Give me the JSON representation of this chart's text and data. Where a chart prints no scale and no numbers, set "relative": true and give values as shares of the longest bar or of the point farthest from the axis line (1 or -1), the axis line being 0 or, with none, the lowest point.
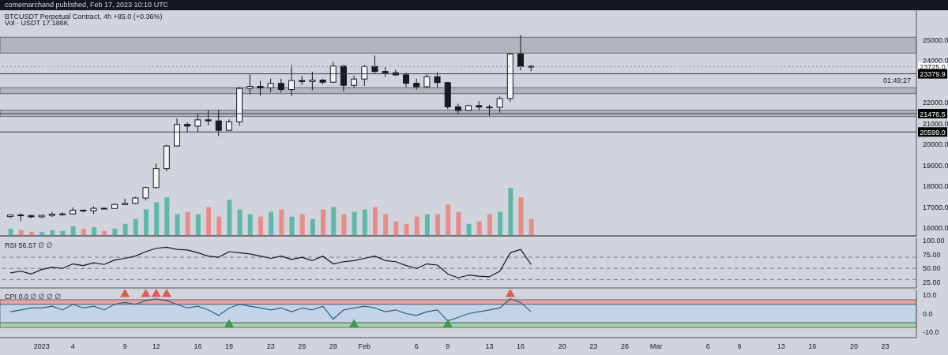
{
  "chart_data": [
    {
      "type": "candlestick",
      "title": "BTCUSDT Perpetual Contract, 4h +85.0 (+0.36%)",
      "annotations": [
        "comemarchand published, Feb 17, 2023 10:10 UTC",
        "01:49:27"
      ],
      "x": [
        "2022-12-29",
        "2022-12-30",
        "2022-12-31",
        "2023-01-01",
        "2023-01-02",
        "2023-01-03",
        "2023-01-04",
        "2023-01-05",
        "2023-01-06",
        "2023-01-07",
        "2023-01-08",
        "2023-01-09",
        "2023-01-10",
        "2023-01-11",
        "2023-01-12",
        "2023-01-13",
        "2023-01-14",
        "2023-01-15",
        "2023-01-16",
        "2023-01-17",
        "2023-01-18",
        "2023-01-19",
        "2023-01-20",
        "2023-01-21",
        "2023-01-22",
        "2023-01-23",
        "2023-01-24",
        "2023-01-25",
        "2023-01-26",
        "2023-01-27",
        "2023-01-28",
        "2023-01-29",
        "2023-01-30",
        "2023-01-31",
        "2023-02-01",
        "2023-02-02",
        "2023-02-03",
        "2023-02-04",
        "2023-02-05",
        "2023-02-06",
        "2023-02-07",
        "2023-02-08",
        "2023-02-09",
        "2023-02-10",
        "2023-02-11",
        "2023-02-12",
        "2023-02-13",
        "2023-02-14",
        "2023-02-15",
        "2023-02-16",
        "2023-02-17"
      ],
      "ohlc": [
        [
          16550,
          16650,
          16480,
          16630
        ],
        [
          16630,
          16720,
          16330,
          16600
        ],
        [
          16600,
          16640,
          16480,
          16540
        ],
        [
          16540,
          16630,
          16490,
          16610
        ],
        [
          16610,
          16780,
          16540,
          16670
        ],
        [
          16670,
          16760,
          16600,
          16680
        ],
        [
          16680,
          17000,
          16650,
          16860
        ],
        [
          16860,
          16880,
          16760,
          16830
        ],
        [
          16830,
          17040,
          16680,
          16950
        ],
        [
          16950,
          16980,
          16910,
          16940
        ],
        [
          16940,
          17180,
          16920,
          17130
        ],
        [
          17130,
          17400,
          17100,
          17180
        ],
        [
          17180,
          17500,
          17150,
          17440
        ],
        [
          17440,
          17990,
          17320,
          17940
        ],
        [
          17940,
          19100,
          17920,
          18850
        ],
        [
          18850,
          19980,
          18720,
          19930
        ],
        [
          19930,
          21250,
          19890,
          20960
        ],
        [
          20960,
          21050,
          20570,
          20880
        ],
        [
          20880,
          21480,
          20600,
          21180
        ],
        [
          21180,
          21630,
          20920,
          21130
        ],
        [
          21130,
          21650,
          20400,
          20680
        ],
        [
          20680,
          21200,
          20660,
          21080
        ],
        [
          21080,
          22750,
          20890,
          22680
        ],
        [
          22680,
          23350,
          22400,
          22780
        ],
        [
          22780,
          23050,
          22330,
          22710
        ],
        [
          22710,
          23150,
          22500,
          22920
        ],
        [
          22920,
          23150,
          22480,
          22630
        ],
        [
          22630,
          23800,
          22320,
          23060
        ],
        [
          23060,
          23280,
          22850,
          23010
        ],
        [
          23010,
          23480,
          22600,
          23080
        ],
        [
          23080,
          23150,
          22880,
          22980
        ],
        [
          22980,
          23950,
          22950,
          23750
        ],
        [
          23750,
          23800,
          22550,
          22830
        ],
        [
          22830,
          23300,
          22720,
          23130
        ],
        [
          23130,
          23800,
          22800,
          23730
        ],
        [
          23730,
          24250,
          23380,
          23490
        ],
        [
          23490,
          23700,
          23250,
          23430
        ],
        [
          23430,
          23580,
          23280,
          23330
        ],
        [
          23330,
          23440,
          22750,
          22930
        ],
        [
          22930,
          23150,
          22630,
          22760
        ],
        [
          22760,
          23350,
          22700,
          23240
        ],
        [
          23240,
          23450,
          22700,
          22960
        ],
        [
          22960,
          22990,
          21700,
          21800
        ],
        [
          21800,
          21950,
          21450,
          21630
        ],
        [
          21630,
          21900,
          21600,
          21860
        ],
        [
          21860,
          22080,
          21620,
          21790
        ],
        [
          21790,
          21900,
          21370,
          21780
        ],
        [
          21780,
          22300,
          21530,
          22200
        ],
        [
          22200,
          24380,
          22050,
          24330
        ],
        [
          24330,
          25250,
          23540,
          23740
        ],
        [
          23740,
          23800,
          23500,
          23725
        ]
      ],
      "colors": [
        "#f4f4f4",
        "#1a1a1a",
        "#1a1a1a",
        "#f4f4f4",
        "#f4f4f4",
        "#f4f4f4",
        "#f4f4f4",
        "#1a1a1a",
        "#f4f4f4",
        "#1a1a1a",
        "#f4f4f4",
        "#f4f4f4",
        "#f4f4f4",
        "#f4f4f4",
        "#f4f4f4",
        "#f4f4f4",
        "#f4f4f4",
        "#1a1a1a",
        "#f4f4f4",
        "#1a1a1a",
        "#1a1a1a",
        "#f4f4f4",
        "#f4f4f4",
        "#f4f4f4",
        "#1a1a1a",
        "#f4f4f4",
        "#1a1a1a",
        "#f4f4f4",
        "#1a1a1a",
        "#f4f4f4",
        "#1a1a1a",
        "#f4f4f4",
        "#1a1a1a",
        "#f4f4f4",
        "#f4f4f4",
        "#1a1a1a",
        "#1a1a1a",
        "#1a1a1a",
        "#1a1a1a",
        "#1a1a1a",
        "#f4f4f4",
        "#1a1a1a",
        "#1a1a1a",
        "#1a1a1a",
        "#f4f4f4",
        "#1a1a1a",
        "#1a1a1a",
        "#f4f4f4",
        "#f4f4f4",
        "#1a1a1a",
        "#1a1a1a"
      ],
      "xlim": [
        "2022-12-28",
        "2023-03-26"
      ],
      "ylim": [
        15630,
        26420
      ],
      "yticks": [
        {
          "value": 16000,
          "label": "16000.0"
        },
        {
          "value": 17000,
          "label": "17000.0"
        },
        {
          "value": 18000,
          "label": "18000.0"
        },
        {
          "value": 19000,
          "label": "19000.0"
        },
        {
          "value": 20000,
          "label": "20000.0"
        },
        {
          "value": 21000,
          "label": "21000.0"
        },
        {
          "value": 22000,
          "label": "22000.0"
        },
        {
          "value": 24000,
          "label": "24000.0"
        },
        {
          "value": 25000,
          "label": "25000.0"
        }
      ],
      "bands": [
        {
          "axis": "y",
          "from": 24370,
          "to": 25130,
          "color": "#b2b5be"
        },
        {
          "axis": "y",
          "from": 22430,
          "to": 22720,
          "color": "#b2b5be"
        },
        {
          "axis": "y",
          "from": 21340,
          "to": 21640,
          "color": "#b2b5be"
        }
      ],
      "ref_lines": [
        {
          "axis": "y",
          "value": 23725,
          "label": "23725.0",
          "color": "#9598a1",
          "line_style": "dotted"
        },
        {
          "axis": "y",
          "value": 23379.9,
          "label": "23379.9",
          "color": "#363a45",
          "line_style": "solid"
        },
        {
          "axis": "y",
          "value": 21476.5,
          "label": "21476.5",
          "color": "#363a45",
          "line_style": "solid"
        },
        {
          "axis": "y",
          "value": 20599.0,
          "label": "20599.0",
          "color": "#363a45",
          "line_style": "solid"
        }
      ],
      "tick_labels": "y"
    },
    {
      "type": "bar",
      "title": "Vol · USDT 17.186K",
      "relative": true,
      "tick_labels": false,
      "x": [
        "2022-12-29",
        "2022-12-30",
        "2022-12-31",
        "2023-01-01",
        "2023-01-02",
        "2023-01-03",
        "2023-01-04",
        "2023-01-05",
        "2023-01-06",
        "2023-01-07",
        "2023-01-08",
        "2023-01-09",
        "2023-01-10",
        "2023-01-11",
        "2023-01-12",
        "2023-01-13",
        "2023-01-14",
        "2023-01-15",
        "2023-01-16",
        "2023-01-17",
        "2023-01-18",
        "2023-01-19",
        "2023-01-20",
        "2023-01-21",
        "2023-01-22",
        "2023-01-23",
        "2023-01-24",
        "2023-01-25",
        "2023-01-26",
        "2023-01-27",
        "2023-01-28",
        "2023-01-29",
        "2023-01-30",
        "2023-01-31",
        "2023-02-01",
        "2023-02-02",
        "2023-02-03",
        "2023-02-04",
        "2023-02-05",
        "2023-02-06",
        "2023-02-07",
        "2023-02-08",
        "2023-02-09",
        "2023-02-10",
        "2023-02-11",
        "2023-02-12",
        "2023-02-13",
        "2023-02-14",
        "2023-02-15",
        "2023-02-16",
        "2023-02-17"
      ],
      "values": [
        0.15,
        0.12,
        0.08,
        0.08,
        0.12,
        0.1,
        0.2,
        0.15,
        0.18,
        0.1,
        0.15,
        0.25,
        0.35,
        0.55,
        0.7,
        0.8,
        0.45,
        0.5,
        0.45,
        0.6,
        0.4,
        0.75,
        0.55,
        0.45,
        0.4,
        0.5,
        0.55,
        0.4,
        0.45,
        0.35,
        0.55,
        0.6,
        0.45,
        0.5,
        0.55,
        0.6,
        0.45,
        0.3,
        0.25,
        0.4,
        0.45,
        0.45,
        0.65,
        0.5,
        0.25,
        0.3,
        0.45,
        0.5,
        1.0,
        0.8,
        0.35
      ],
      "colors": [
        "#5fb7a9",
        "#e88c88",
        "#e88c88",
        "#5fb7a9",
        "#5fb7a9",
        "#5fb7a9",
        "#5fb7a9",
        "#e88c88",
        "#5fb7a9",
        "#e88c88",
        "#5fb7a9",
        "#5fb7a9",
        "#5fb7a9",
        "#5fb7a9",
        "#5fb7a9",
        "#5fb7a9",
        "#5fb7a9",
        "#e88c88",
        "#5fb7a9",
        "#e88c88",
        "#e88c88",
        "#5fb7a9",
        "#5fb7a9",
        "#5fb7a9",
        "#e88c88",
        "#5fb7a9",
        "#e88c88",
        "#5fb7a9",
        "#e88c88",
        "#5fb7a9",
        "#e88c88",
        "#5fb7a9",
        "#e88c88",
        "#5fb7a9",
        "#5fb7a9",
        "#e88c88",
        "#e88c88",
        "#e88c88",
        "#e88c88",
        "#e88c88",
        "#5fb7a9",
        "#e88c88",
        "#e88c88",
        "#e88c88",
        "#5fb7a9",
        "#e88c88",
        "#e88c88",
        "#5fb7a9",
        "#5fb7a9",
        "#e88c88",
        "#e88c88"
      ],
      "xlim": [
        "2022-12-28",
        "2023-03-26"
      ]
    },
    {
      "type": "line",
      "title": "RSI 56.57 ∅ ∅",
      "tick_labels": "y",
      "x": [
        "2022-12-29",
        "2022-12-30",
        "2022-12-31",
        "2023-01-01",
        "2023-01-02",
        "2023-01-03",
        "2023-01-04",
        "2023-01-05",
        "2023-01-06",
        "2023-01-07",
        "2023-01-08",
        "2023-01-09",
        "2023-01-10",
        "2023-01-11",
        "2023-01-12",
        "2023-01-13",
        "2023-01-14",
        "2023-01-15",
        "2023-01-16",
        "2023-01-17",
        "2023-01-18",
        "2023-01-19",
        "2023-01-20",
        "2023-01-21",
        "2023-01-22",
        "2023-01-23",
        "2023-01-24",
        "2023-01-25",
        "2023-01-26",
        "2023-01-27",
        "2023-01-28",
        "2023-01-29",
        "2023-01-30",
        "2023-01-31",
        "2023-02-01",
        "2023-02-02",
        "2023-02-03",
        "2023-02-04",
        "2023-02-05",
        "2023-02-06",
        "2023-02-07",
        "2023-02-08",
        "2023-02-09",
        "2023-02-10",
        "2023-02-11",
        "2023-02-12",
        "2023-02-13",
        "2023-02-14",
        "2023-02-15",
        "2023-02-16",
        "2023-02-17"
      ],
      "series": [
        {
          "color": "#131722",
          "values": [
            42,
            45,
            40,
            48,
            52,
            50,
            58,
            55,
            60,
            57,
            65,
            68,
            72,
            80,
            86,
            88,
            84,
            83,
            78,
            72,
            70,
            80,
            78,
            76,
            72,
            68,
            72,
            66,
            70,
            64,
            72,
            58,
            62,
            64,
            68,
            72,
            64,
            62,
            55,
            50,
            58,
            56,
            40,
            33,
            38,
            36,
            35,
            45,
            78,
            84,
            57
          ]
        }
      ],
      "xlim": [
        "2022-12-28",
        "2023-03-26"
      ],
      "ylim": [
        15,
        104
      ],
      "yticks": [
        {
          "value": 25,
          "label": "25.00"
        },
        {
          "value": 50,
          "label": "50.00"
        },
        {
          "value": 75,
          "label": "75.00"
        },
        {
          "value": 100,
          "label": "100.00"
        }
      ],
      "ref_lines": [
        {
          "axis": "y",
          "value": 70,
          "color": "#787b86",
          "line_style": "dashed"
        },
        {
          "axis": "y",
          "value": 50,
          "color": "#787b86",
          "line_style": "dashed"
        },
        {
          "axis": "y",
          "value": 30,
          "color": "#787b86",
          "line_style": "dashed"
        }
      ],
      "line_style": "solid"
    },
    {
      "type": "line",
      "title": "CPI 0.0 ∅ ∅ ∅ ∅",
      "x": [
        "2022-12-29",
        "2022-12-30",
        "2022-12-31",
        "2023-01-01",
        "2023-01-02",
        "2023-01-03",
        "2023-01-04",
        "2023-01-05",
        "2023-01-06",
        "2023-01-07",
        "2023-01-08",
        "2023-01-09",
        "2023-01-10",
        "2023-01-11",
        "2023-01-12",
        "2023-01-13",
        "2023-01-14",
        "2023-01-15",
        "2023-01-16",
        "2023-01-17",
        "2023-01-18",
        "2023-01-19",
        "2023-01-20",
        "2023-01-21",
        "2023-01-22",
        "2023-01-23",
        "2023-01-24",
        "2023-01-25",
        "2023-01-26",
        "2023-01-27",
        "2023-01-28",
        "2023-01-29",
        "2023-01-30",
        "2023-01-31",
        "2023-02-01",
        "2023-02-02",
        "2023-02-03",
        "2023-02-04",
        "2023-02-05",
        "2023-02-06",
        "2023-02-07",
        "2023-02-08",
        "2023-02-09",
        "2023-02-10",
        "2023-02-11",
        "2023-02-12",
        "2023-02-13",
        "2023-02-14",
        "2023-02-15",
        "2023-02-16",
        "2023-02-17"
      ],
      "series": [
        {
          "color": "#2f5d8a",
          "values": [
            1,
            2,
            3,
            3,
            4,
            2,
            5,
            3,
            4,
            2,
            5,
            6,
            5,
            7,
            8,
            7,
            5,
            3,
            4,
            2,
            -1,
            3,
            5,
            4,
            3,
            2,
            3,
            1,
            3,
            2,
            4,
            -3,
            2,
            3,
            4,
            3,
            1,
            2,
            0,
            -1,
            1,
            2,
            -4,
            -2,
            0,
            1,
            2,
            3,
            8,
            6,
            1
          ]
        },
        {
          "type": "scatter",
          "color": "#e05a55",
          "marker": "triangle",
          "x": [
            "2023-01-09",
            "2023-01-11",
            "2023-01-12",
            "2023-01-13",
            "2023-02-15"
          ],
          "values": [
            10.5,
            10.5,
            10.5,
            10.5,
            10.5
          ]
        },
        {
          "type": "scatter",
          "color": "#3d9b4a",
          "marker": "triangle",
          "x": [
            "2023-01-19",
            "2023-01-31",
            "2023-02-09"
          ],
          "values": [
            -6,
            -6,
            -6
          ]
        }
      ],
      "xlim": [
        "2022-12-28",
        "2023-03-26"
      ],
      "ylim": [
        -13,
        13
      ],
      "yticks": [
        {
          "value": -10,
          "label": "-10.0"
        },
        {
          "value": 0,
          "label": "0.0"
        },
        {
          "value": 10,
          "label": "10.0"
        }
      ],
      "xticks": [
        {
          "value": "2023-01-01",
          "label": "2023"
        },
        {
          "value": "2023-01-04",
          "label": "4"
        },
        {
          "value": "2023-01-09",
          "label": "9"
        },
        {
          "value": "2023-01-12",
          "label": "12"
        },
        {
          "value": "2023-01-16",
          "label": "16"
        },
        {
          "value": "2023-01-19",
          "label": "19"
        },
        {
          "value": "2023-01-23",
          "label": "23"
        },
        {
          "value": "2023-01-26",
          "label": "26"
        },
        {
          "value": "2023-01-29",
          "label": "29"
        },
        {
          "value": "2023-02-01",
          "label": "Feb"
        },
        {
          "value": "2023-02-06",
          "label": "6"
        },
        {
          "value": "2023-02-09",
          "label": "9"
        },
        {
          "value": "2023-02-13",
          "label": "13"
        },
        {
          "value": "2023-02-16",
          "label": "16"
        },
        {
          "value": "2023-02-20",
          "label": "20"
        },
        {
          "value": "2023-02-23",
          "label": "23"
        },
        {
          "value": "2023-02-26",
          "label": "26"
        },
        {
          "value": "2023-03-01",
          "label": "Mar"
        },
        {
          "value": "2023-03-06",
          "label": "6"
        },
        {
          "value": "2023-03-09",
          "label": "9"
        },
        {
          "value": "2023-03-13",
          "label": "13"
        },
        {
          "value": "2023-03-16",
          "label": "16"
        },
        {
          "value": "2023-03-20",
          "label": "20"
        },
        {
          "value": "2023-03-23",
          "label": "23"
        }
      ],
      "bands": [
        {
          "axis": "y",
          "from": 5,
          "to": 7.5,
          "color": "#e8a3a3"
        },
        {
          "axis": "y",
          "from": -5,
          "to": 5,
          "color": "#c3d4e8"
        },
        {
          "axis": "y",
          "from": -7.5,
          "to": -5,
          "color": "#a9d3a6"
        }
      ],
      "line_style": "solid"
    }
  ]
}
